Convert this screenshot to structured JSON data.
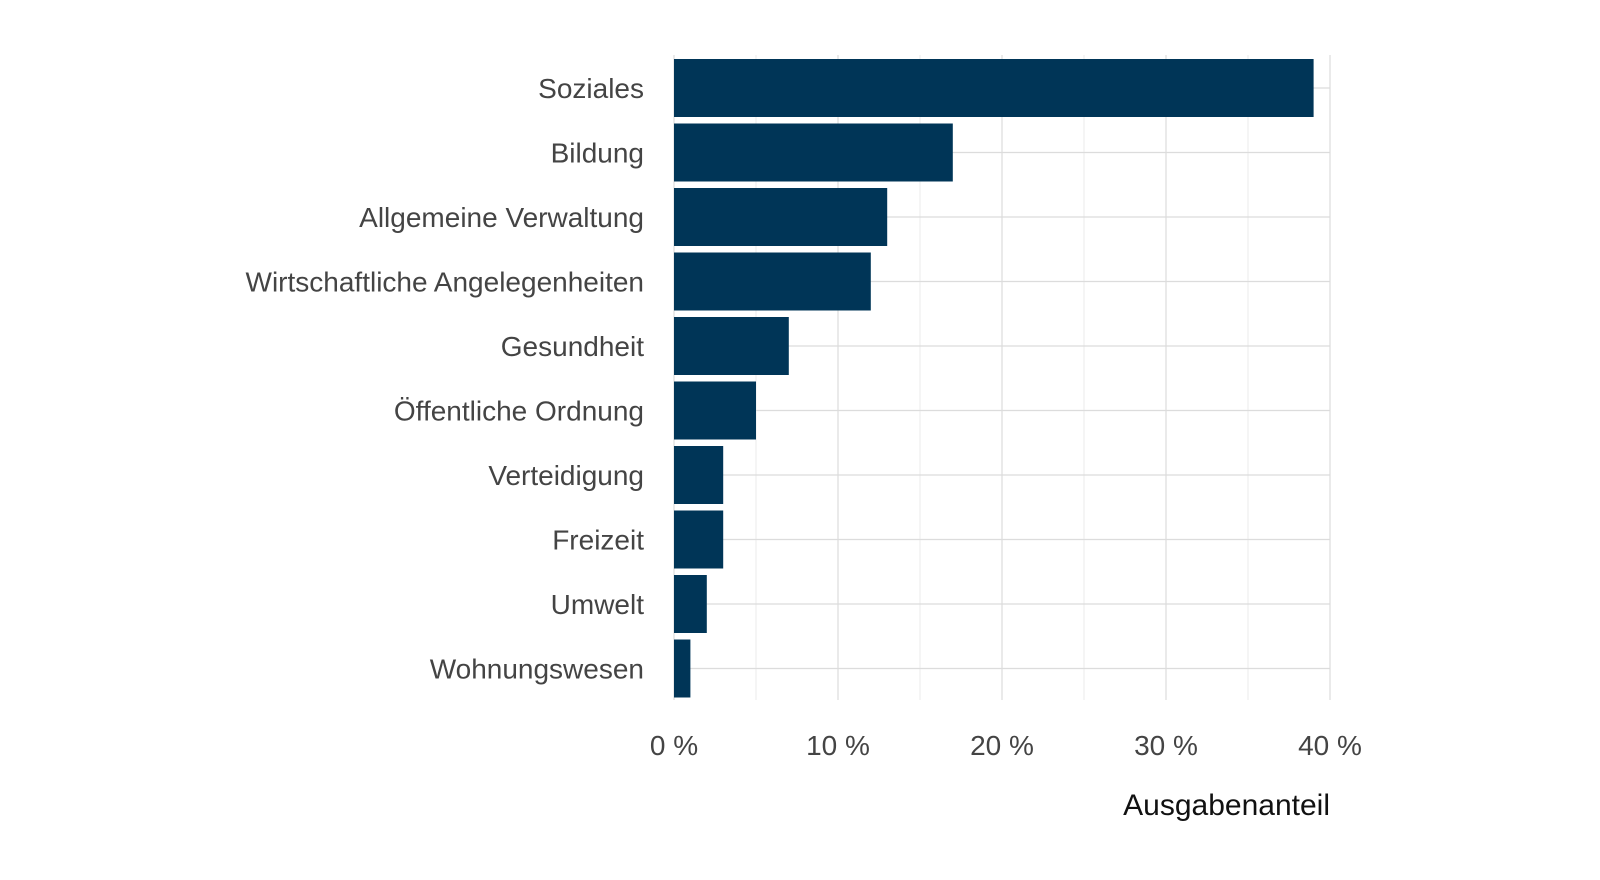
{
  "chart_data": {
    "type": "bar",
    "orientation": "horizontal",
    "title": "",
    "xlabel": "Ausgabenanteil",
    "ylabel": "",
    "categories": [
      "Soziales",
      "Bildung",
      "Allgemeine Verwaltung",
      "Wirtschaftliche Angelegenheiten",
      "Gesundheit",
      "Öffentliche Ordnung",
      "Verteidigung",
      "Freizeit",
      "Umwelt",
      "Wohnungswesen"
    ],
    "values": [
      39.0,
      17.0,
      13.0,
      12.0,
      7.0,
      5.0,
      3.0,
      3.0,
      2.0,
      1.0
    ],
    "xlim": [
      0,
      40
    ],
    "xticks": [
      0,
      10,
      20,
      30,
      40
    ],
    "xtick_labels": [
      "0 %",
      "10 %",
      "20 %",
      "30 %",
      "40 %"
    ],
    "bar_color": "#003557",
    "grid": true,
    "legend": "none"
  }
}
